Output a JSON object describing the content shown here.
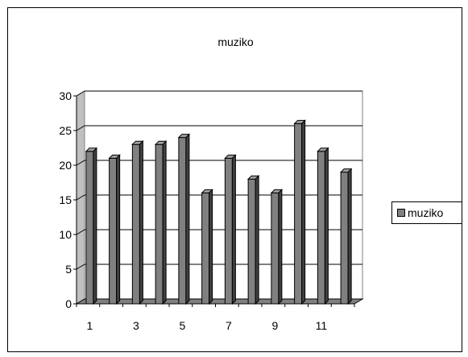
{
  "chart_data": {
    "type": "bar",
    "title": "muziko",
    "categories": [
      "1",
      "2",
      "3",
      "4",
      "5",
      "6",
      "7",
      "8",
      "9",
      "10",
      "11",
      "12"
    ],
    "x_tick_labels": [
      "1",
      "3",
      "5",
      "7",
      "9",
      "11"
    ],
    "series": [
      {
        "name": "muziko",
        "values": [
          22,
          21,
          23,
          23,
          24,
          16,
          21,
          18,
          16,
          26,
          22,
          19
        ]
      }
    ],
    "y_ticks": [
      "0",
      "5",
      "10",
      "15",
      "20",
      "25",
      "30"
    ],
    "ylim": [
      0,
      30
    ],
    "grid": true,
    "legend_position": "right",
    "bar_color": "#808080",
    "xlabel": "",
    "ylabel": ""
  }
}
